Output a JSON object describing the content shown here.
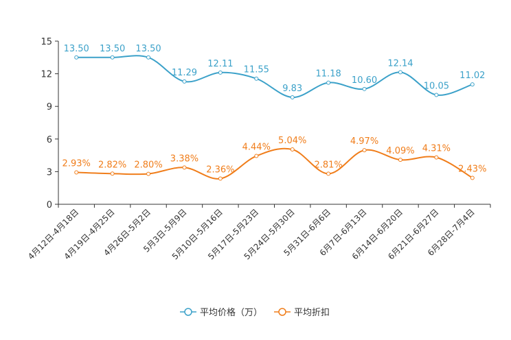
{
  "chart_data": {
    "type": "line",
    "title": "",
    "xlabel": "",
    "ylabel": "",
    "ylim": [
      0,
      15
    ],
    "yticks": [
      0,
      3,
      6,
      9,
      12,
      15
    ],
    "legend_position": "bottom",
    "categories": [
      "4月12日-4月18日",
      "4月19日-4月25日",
      "4月26日-5月2日",
      "5月3日-5月9日",
      "5月10日-5月16日",
      "5月17日-5月23日",
      "5月24日-5月30日",
      "5月31日-6月6日",
      "6月7日-6月13日",
      "6月14日-6月20日",
      "6月21日-6月27日",
      "6月28日-7月4日"
    ],
    "series": [
      {
        "name": "平均价格（万）",
        "color": "#3ba1c9",
        "values": [
          13.5,
          13.5,
          13.5,
          11.29,
          12.11,
          11.55,
          9.83,
          11.18,
          10.6,
          12.14,
          10.05,
          11.02
        ],
        "labels": [
          "13.50",
          "13.50",
          "13.50",
          "11.29",
          "12.11",
          "11.55",
          "9.83",
          "11.18",
          "10.60",
          "12.14",
          "10.05",
          "11.02"
        ]
      },
      {
        "name": "平均折扣",
        "color": "#f07d1a",
        "values": [
          2.93,
          2.82,
          2.8,
          3.38,
          2.36,
          4.44,
          5.04,
          2.81,
          4.97,
          4.09,
          4.31,
          2.43
        ],
        "labels": [
          "2.93%",
          "2.82%",
          "2.80%",
          "3.38%",
          "2.36%",
          "4.44%",
          "5.04%",
          "2.81%",
          "4.97%",
          "4.09%",
          "4.31%",
          "2.43%"
        ]
      }
    ]
  }
}
